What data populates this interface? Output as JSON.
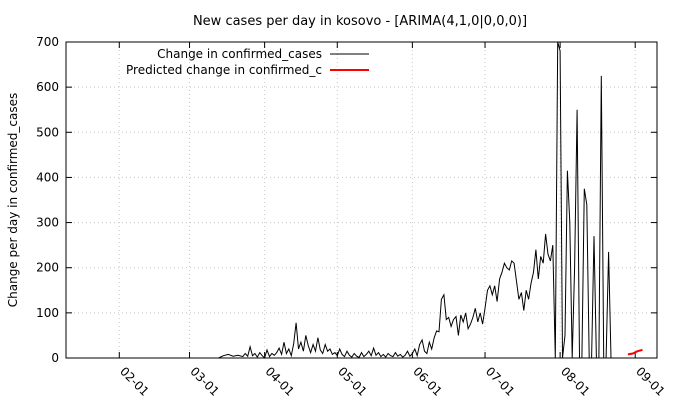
{
  "chart_data": {
    "type": "line",
    "title": "New cases per day in kosovo -  [ARIMA(4,1,0|0,0,0)]",
    "xlabel": "",
    "ylabel": "Change per day in confirmed_cases",
    "x_type": "date",
    "xlim": [
      "2020-01-10",
      "2020-09-10"
    ],
    "ylim": [
      0,
      700
    ],
    "y_ticks": [
      0,
      100,
      200,
      300,
      400,
      500,
      600,
      700
    ],
    "x_ticks": [
      {
        "date": "2020-02-01",
        "label": "02-01"
      },
      {
        "date": "2020-03-01",
        "label": "03-01"
      },
      {
        "date": "2020-04-01",
        "label": "04-01"
      },
      {
        "date": "2020-05-01",
        "label": "05-01"
      },
      {
        "date": "2020-06-01",
        "label": "06-01"
      },
      {
        "date": "2020-07-01",
        "label": "07-01"
      },
      {
        "date": "2020-08-01",
        "label": "08-01"
      },
      {
        "date": "2020-09-01",
        "label": "09-01"
      }
    ],
    "grid": true,
    "legend_position": "top-left",
    "series": [
      {
        "name": "Change in confirmed_cases",
        "color": "#000000",
        "points": [
          [
            "2020-03-13",
            0
          ],
          [
            "2020-03-15",
            5
          ],
          [
            "2020-03-17",
            8
          ],
          [
            "2020-03-19",
            4
          ],
          [
            "2020-03-21",
            6
          ],
          [
            "2020-03-23",
            3
          ],
          [
            "2020-03-24",
            10
          ],
          [
            "2020-03-25",
            4
          ],
          [
            "2020-03-26",
            25
          ],
          [
            "2020-03-27",
            5
          ],
          [
            "2020-03-28",
            10
          ],
          [
            "2020-03-29",
            2
          ],
          [
            "2020-03-30",
            12
          ],
          [
            "2020-03-31",
            5
          ],
          [
            "2020-04-01",
            0
          ],
          [
            "2020-04-02",
            18
          ],
          [
            "2020-04-03",
            3
          ],
          [
            "2020-04-04",
            10
          ],
          [
            "2020-04-05",
            6
          ],
          [
            "2020-04-06",
            12
          ],
          [
            "2020-04-07",
            22
          ],
          [
            "2020-04-08",
            8
          ],
          [
            "2020-04-09",
            35
          ],
          [
            "2020-04-10",
            10
          ],
          [
            "2020-04-11",
            20
          ],
          [
            "2020-04-12",
            5
          ],
          [
            "2020-04-13",
            32
          ],
          [
            "2020-04-14",
            78
          ],
          [
            "2020-04-15",
            20
          ],
          [
            "2020-04-16",
            35
          ],
          [
            "2020-04-17",
            15
          ],
          [
            "2020-04-18",
            50
          ],
          [
            "2020-04-19",
            28
          ],
          [
            "2020-04-20",
            12
          ],
          [
            "2020-04-21",
            30
          ],
          [
            "2020-04-22",
            15
          ],
          [
            "2020-04-23",
            45
          ],
          [
            "2020-04-24",
            18
          ],
          [
            "2020-04-25",
            10
          ],
          [
            "2020-04-26",
            30
          ],
          [
            "2020-04-27",
            15
          ],
          [
            "2020-04-28",
            20
          ],
          [
            "2020-04-29",
            8
          ],
          [
            "2020-04-30",
            12
          ],
          [
            "2020-05-01",
            5
          ],
          [
            "2020-05-02",
            20
          ],
          [
            "2020-05-03",
            8
          ],
          [
            "2020-05-04",
            3
          ],
          [
            "2020-05-05",
            15
          ],
          [
            "2020-05-06",
            6
          ],
          [
            "2020-05-07",
            2
          ],
          [
            "2020-05-08",
            10
          ],
          [
            "2020-05-09",
            4
          ],
          [
            "2020-05-10",
            1
          ],
          [
            "2020-05-11",
            12
          ],
          [
            "2020-05-12",
            3
          ],
          [
            "2020-05-13",
            8
          ],
          [
            "2020-05-14",
            15
          ],
          [
            "2020-05-15",
            5
          ],
          [
            "2020-05-16",
            22
          ],
          [
            "2020-05-17",
            6
          ],
          [
            "2020-05-18",
            12
          ],
          [
            "2020-05-19",
            3
          ],
          [
            "2020-05-20",
            8
          ],
          [
            "2020-05-21",
            2
          ],
          [
            "2020-05-22",
            10
          ],
          [
            "2020-05-23",
            5
          ],
          [
            "2020-05-24",
            3
          ],
          [
            "2020-05-25",
            12
          ],
          [
            "2020-05-26",
            4
          ],
          [
            "2020-05-27",
            8
          ],
          [
            "2020-05-28",
            2
          ],
          [
            "2020-05-29",
            6
          ],
          [
            "2020-05-30",
            15
          ],
          [
            "2020-05-31",
            4
          ],
          [
            "2020-06-01",
            10
          ],
          [
            "2020-06-02",
            20
          ],
          [
            "2020-06-03",
            5
          ],
          [
            "2020-06-04",
            30
          ],
          [
            "2020-06-05",
            40
          ],
          [
            "2020-06-06",
            15
          ],
          [
            "2020-06-07",
            10
          ],
          [
            "2020-06-08",
            35
          ],
          [
            "2020-06-09",
            20
          ],
          [
            "2020-06-10",
            45
          ],
          [
            "2020-06-11",
            60
          ],
          [
            "2020-06-12",
            58
          ],
          [
            "2020-06-13",
            130
          ],
          [
            "2020-06-14",
            140
          ],
          [
            "2020-06-15",
            85
          ],
          [
            "2020-06-16",
            90
          ],
          [
            "2020-06-17",
            70
          ],
          [
            "2020-06-18",
            85
          ],
          [
            "2020-06-19",
            92
          ],
          [
            "2020-06-20",
            50
          ],
          [
            "2020-06-21",
            95
          ],
          [
            "2020-06-22",
            80
          ],
          [
            "2020-06-23",
            100
          ],
          [
            "2020-06-24",
            65
          ],
          [
            "2020-06-25",
            75
          ],
          [
            "2020-06-26",
            90
          ],
          [
            "2020-06-27",
            110
          ],
          [
            "2020-06-28",
            80
          ],
          [
            "2020-06-29",
            100
          ],
          [
            "2020-06-30",
            75
          ],
          [
            "2020-07-01",
            110
          ],
          [
            "2020-07-02",
            150
          ],
          [
            "2020-07-03",
            160
          ],
          [
            "2020-07-04",
            140
          ],
          [
            "2020-07-05",
            160
          ],
          [
            "2020-07-06",
            125
          ],
          [
            "2020-07-07",
            175
          ],
          [
            "2020-07-08",
            190
          ],
          [
            "2020-07-09",
            210
          ],
          [
            "2020-07-10",
            200
          ],
          [
            "2020-07-11",
            195
          ],
          [
            "2020-07-12",
            215
          ],
          [
            "2020-07-13",
            210
          ],
          [
            "2020-07-14",
            170
          ],
          [
            "2020-07-15",
            130
          ],
          [
            "2020-07-16",
            145
          ],
          [
            "2020-07-17",
            105
          ],
          [
            "2020-07-18",
            150
          ],
          [
            "2020-07-19",
            130
          ],
          [
            "2020-07-20",
            165
          ],
          [
            "2020-07-21",
            190
          ],
          [
            "2020-07-22",
            240
          ],
          [
            "2020-07-23",
            175
          ],
          [
            "2020-07-24",
            225
          ],
          [
            "2020-07-25",
            210
          ],
          [
            "2020-07-26",
            275
          ],
          [
            "2020-07-27",
            230
          ],
          [
            "2020-07-28",
            215
          ],
          [
            "2020-07-29",
            250
          ],
          [
            "2020-07-30",
            0
          ],
          [
            "2020-07-31",
            700
          ],
          [
            "2020-08-01",
            680
          ],
          [
            "2020-08-02",
            0
          ],
          [
            "2020-08-03",
            50
          ],
          [
            "2020-08-04",
            415
          ],
          [
            "2020-08-05",
            300
          ],
          [
            "2020-08-06",
            0
          ],
          [
            "2020-08-07",
            200
          ],
          [
            "2020-08-08",
            550
          ],
          [
            "2020-08-09",
            0
          ],
          [
            "2020-08-10",
            0
          ],
          [
            "2020-08-11",
            375
          ],
          [
            "2020-08-12",
            340
          ],
          [
            "2020-08-13",
            0
          ],
          [
            "2020-08-14",
            0
          ],
          [
            "2020-08-15",
            270
          ],
          [
            "2020-08-16",
            0
          ],
          [
            "2020-08-17",
            0
          ],
          [
            "2020-08-18",
            625
          ],
          [
            "2020-08-19",
            0
          ],
          [
            "2020-08-20",
            0
          ],
          [
            "2020-08-21",
            235
          ],
          [
            "2020-08-22",
            0
          ]
        ]
      },
      {
        "name": "Predicted change in confirmed_c",
        "color": "#ff0000",
        "points": [
          [
            "2020-08-29",
            8
          ],
          [
            "2020-08-31",
            10
          ],
          [
            "2020-09-02",
            15
          ],
          [
            "2020-09-04",
            18
          ]
        ]
      }
    ]
  }
}
